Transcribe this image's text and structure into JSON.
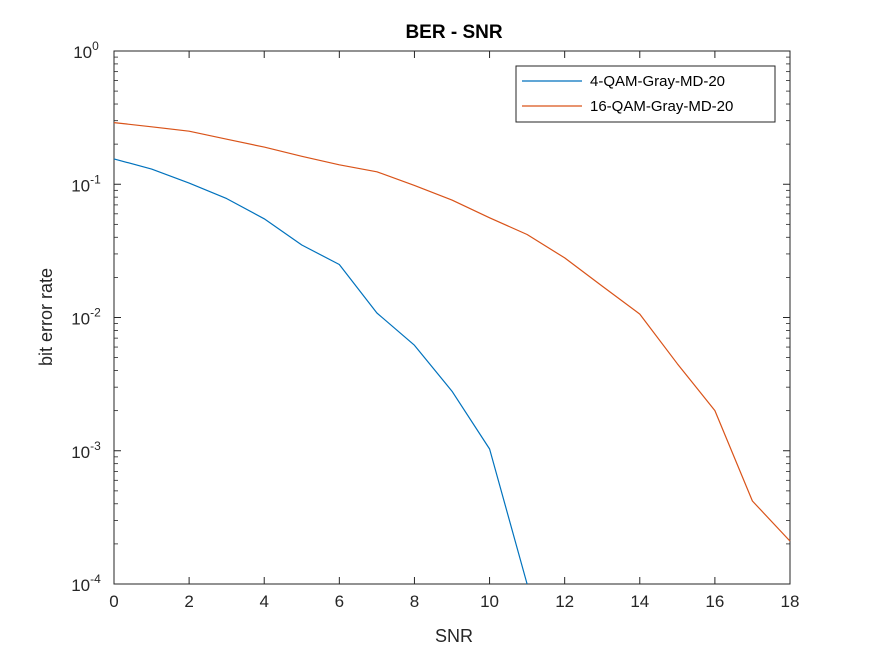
{
  "chart_data": {
    "type": "line",
    "title": "BER - SNR",
    "xlabel": "SNR",
    "ylabel": "bit error rate",
    "xlim": [
      0,
      18
    ],
    "ylim": [
      0.0001,
      1
    ],
    "yscale": "log",
    "grid": false,
    "legend_position": "top-right",
    "x_ticks": [
      0,
      2,
      4,
      6,
      8,
      10,
      12,
      14,
      16,
      18
    ],
    "x_tick_labels": [
      "0",
      "2",
      "4",
      "6",
      "8",
      "10",
      "12",
      "14",
      "16",
      "18"
    ],
    "y_ticks": [
      0.0001,
      0.001,
      0.01,
      0.1,
      1
    ],
    "y_tick_labels": [
      {
        "base": "10",
        "exp": "-4"
      },
      {
        "base": "10",
        "exp": "-3"
      },
      {
        "base": "10",
        "exp": "-2"
      },
      {
        "base": "10",
        "exp": "-1"
      },
      {
        "base": "10",
        "exp": "0"
      }
    ],
    "series": [
      {
        "name": "4-QAM-Gray-MD-20",
        "color": "#0072BD",
        "x": [
          0,
          1,
          2,
          3,
          4,
          5,
          6,
          7,
          8,
          9,
          10,
          11
        ],
        "y": [
          0.155,
          0.13,
          0.102,
          0.078,
          0.055,
          0.035,
          0.025,
          0.0108,
          0.0062,
          0.0028,
          0.00103,
          0.0001
        ]
      },
      {
        "name": "16-QAM-Gray-MD-20",
        "color": "#D95319",
        "x": [
          0,
          1,
          2,
          3,
          4,
          5,
          6,
          7,
          8,
          9,
          10,
          11,
          12,
          13,
          14,
          15,
          16,
          17,
          18
        ],
        "y": [
          0.29,
          0.27,
          0.25,
          0.218,
          0.19,
          0.162,
          0.14,
          0.124,
          0.098,
          0.076,
          0.056,
          0.042,
          0.028,
          0.0172,
          0.0106,
          0.0045,
          0.002,
          0.00042,
          0.00021
        ]
      }
    ]
  }
}
